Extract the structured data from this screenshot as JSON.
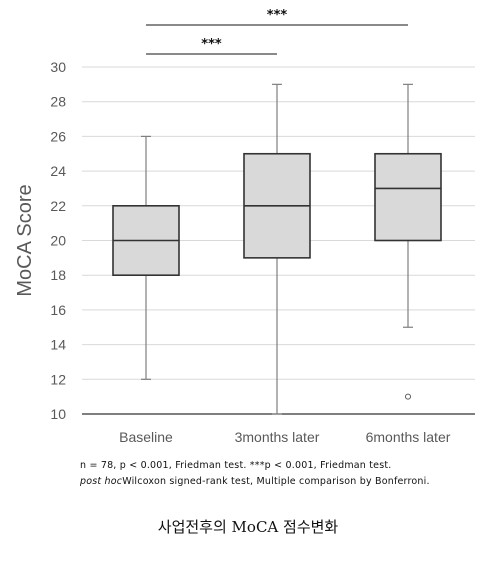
{
  "chart_data": {
    "type": "box",
    "ylabel": "MoCA Score",
    "ylim": [
      10,
      30
    ],
    "yticks": [
      10,
      12,
      14,
      16,
      18,
      20,
      22,
      24,
      26,
      28,
      30
    ],
    "categories": [
      "Baseline",
      "3months later",
      "6months later"
    ],
    "boxes": [
      {
        "min": 12,
        "q1": 18,
        "median": 20,
        "q3": 22,
        "max": 26,
        "outliers": []
      },
      {
        "min": 10,
        "q1": 19,
        "median": 22,
        "q3": 25,
        "max": 29,
        "outliers": []
      },
      {
        "min": 15,
        "q1": 20,
        "median": 23,
        "q3": 25,
        "max": 29,
        "outliers": [
          11
        ]
      }
    ],
    "significance": [
      {
        "from": "Baseline",
        "to": "3months later",
        "label": "***"
      },
      {
        "from": "Baseline",
        "to": "6months later",
        "label": "***"
      }
    ],
    "colors": {
      "box_fill": "#d9d9d9",
      "box_stroke": "#333333",
      "whisker": "#7f7f7f",
      "axis": "#333333",
      "grid": "#d9d9d9"
    }
  },
  "notes": {
    "line1": "n = 78, p < 0.001, Friedman test. ***p < 0.001, Friedman test.",
    "line2_italic": "post hoc",
    "line2_rest": "Wilcoxon signed-rank test, Multiple comparison by Bonferroni."
  },
  "caption": "사업전후의 MoCA 점수변화"
}
